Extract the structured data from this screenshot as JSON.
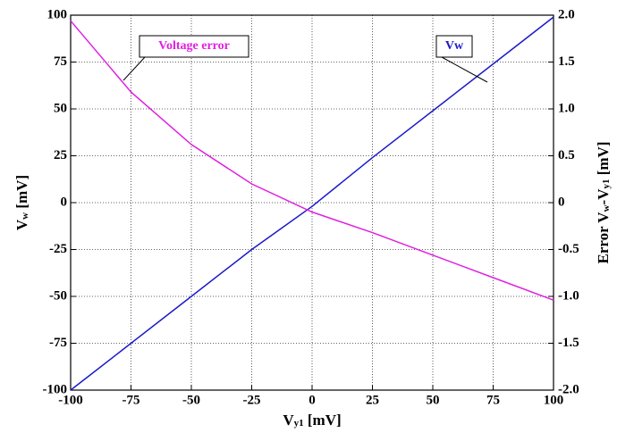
{
  "chart_data": {
    "type": "line",
    "x_label": [
      "V",
      "y1",
      " [mV]"
    ],
    "y_label": [
      "V",
      "w",
      " [mV]"
    ],
    "y2_label": [
      "Error V",
      "w",
      "-V",
      "y1",
      " [mV]"
    ],
    "x": [
      -100,
      -75,
      -50,
      -25,
      0,
      25,
      50,
      75,
      100
    ],
    "series": [
      {
        "name": "Vw",
        "color": "#1a1ac8",
        "values": [
          -100,
          -75,
          -50,
          -25,
          -2,
          24,
          49,
          74,
          99
        ]
      },
      {
        "name": "Voltage error",
        "color": "#e020e0",
        "axis": "y2",
        "values": [
          1.94,
          1.18,
          0.62,
          0.2,
          -0.1,
          -0.32,
          -0.56,
          -0.8,
          -1.04
        ]
      }
    ],
    "xlim": [
      -100,
      100
    ],
    "xticks": [
      -100,
      -75,
      -50,
      -25,
      0,
      25,
      50,
      75,
      100
    ],
    "ylim": [
      -100,
      100
    ],
    "yticks": [
      -100,
      -75,
      -50,
      -25,
      0,
      25,
      50,
      75,
      100
    ],
    "y2lim": [
      -2,
      2
    ],
    "y2ticks": [
      {
        "value": -2,
        "label": "-2.0"
      },
      -1.5,
      {
        "value": -1,
        "label": "-1.0"
      },
      -0.5,
      0,
      0.5,
      {
        "value": 1,
        "label": "1.0"
      },
      1.5,
      {
        "value": 2,
        "label": "2.0"
      }
    ],
    "grid": true
  }
}
